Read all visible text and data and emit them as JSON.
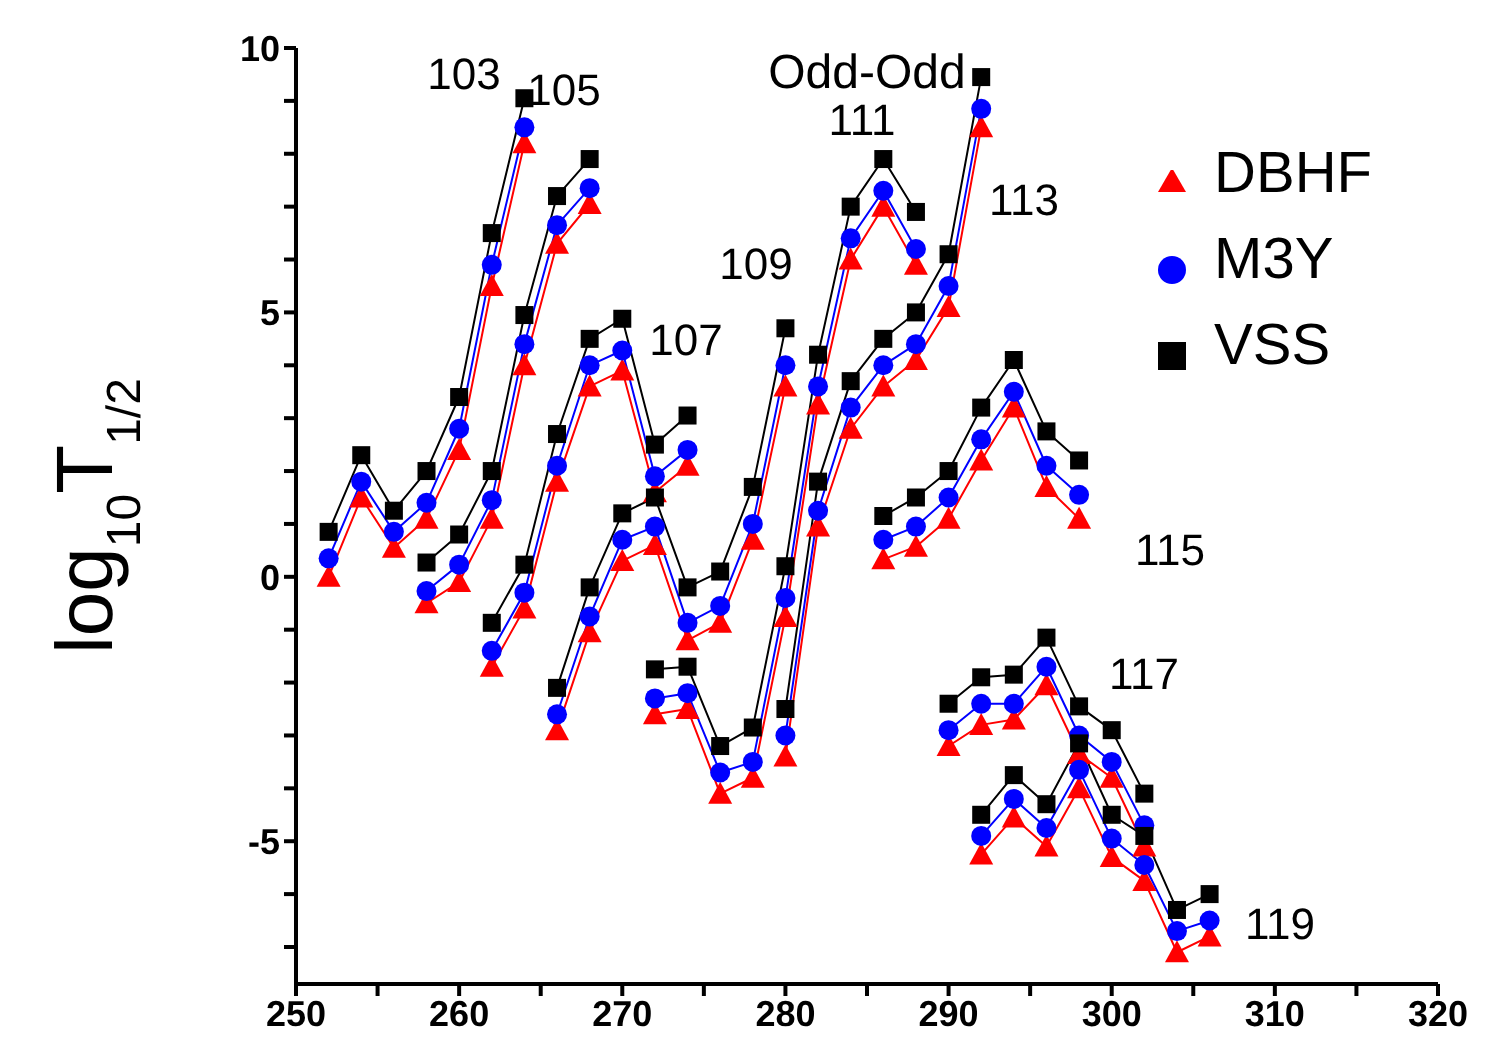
{
  "chart_data": {
    "type": "line",
    "title": "Odd-Odd",
    "ylabel": "log$_{10}$T$_{1/2}$",
    "series": [
      {
        "name": "DBHF",
        "color": "#ff0000",
        "marker": "triangle",
        "x": [
          252,
          254,
          256,
          258,
          260,
          262,
          264
        ],
        "values": [
          0.0,
          1.5,
          0.55,
          1.1,
          2.4,
          5.5,
          8.2
        ]
      },
      {
        "name": "M3Y",
        "color": "#0000ff",
        "marker": "circle",
        "x": [
          252,
          254,
          256,
          258,
          260,
          262,
          264
        ],
        "values": [
          0.35,
          1.8,
          0.85,
          1.4,
          2.8,
          5.9,
          8.5
        ]
      },
      {
        "name": "VSS",
        "color": "#000000",
        "marker": "square",
        "x": [
          252,
          254,
          256,
          258,
          260,
          262,
          264
        ],
        "values": [
          0.85,
          2.3,
          1.25,
          2.0,
          3.4,
          6.5,
          9.05
        ]
      },
      {
        "color": "#ff0000",
        "marker": "triangle",
        "x": [
          258,
          260,
          262,
          264,
          266,
          268
        ],
        "values": [
          -0.5,
          -0.1,
          1.1,
          4.0,
          6.3,
          7.05
        ]
      },
      {
        "color": "#0000ff",
        "marker": "circle",
        "x": [
          258,
          260,
          262,
          264,
          266,
          268
        ],
        "values": [
          -0.27,
          0.23,
          1.45,
          4.4,
          6.65,
          7.35
        ]
      },
      {
        "color": "#000000",
        "marker": "square",
        "x": [
          258,
          260,
          262,
          264,
          266,
          268
        ],
        "values": [
          0.27,
          0.8,
          2.0,
          4.95,
          7.2,
          7.9
        ]
      },
      {
        "color": "#ff0000",
        "marker": "triangle",
        "x": [
          262,
          264,
          266,
          268,
          270,
          272,
          274
        ],
        "values": [
          -1.7,
          -0.6,
          1.8,
          3.6,
          3.9,
          1.6,
          2.1
        ]
      },
      {
        "color": "#0000ff",
        "marker": "circle",
        "x": [
          262,
          264,
          266,
          268,
          270,
          272,
          274
        ],
        "values": [
          -1.4,
          -0.3,
          2.1,
          4.0,
          4.28,
          1.9,
          2.4
        ]
      },
      {
        "color": "#000000",
        "marker": "square",
        "x": [
          262,
          264,
          266,
          268,
          270,
          272,
          274
        ],
        "values": [
          -0.87,
          0.23,
          2.7,
          4.5,
          4.88,
          2.5,
          3.05
        ]
      },
      {
        "color": "#ff0000",
        "marker": "triangle",
        "x": [
          266,
          268,
          270,
          272,
          274,
          276,
          278,
          280
        ],
        "values": [
          -2.9,
          -1.05,
          0.3,
          0.6,
          -1.2,
          -0.87,
          0.7,
          3.6
        ]
      },
      {
        "color": "#0000ff",
        "marker": "circle",
        "x": [
          266,
          268,
          270,
          272,
          274,
          276,
          278,
          280
        ],
        "values": [
          -2.6,
          -0.75,
          0.7,
          0.95,
          -0.87,
          -0.55,
          1.0,
          4.0
        ]
      },
      {
        "color": "#000000",
        "marker": "square",
        "x": [
          266,
          268,
          270,
          272,
          274,
          276,
          278,
          280
        ],
        "values": [
          -2.1,
          -0.2,
          1.2,
          1.5,
          -0.2,
          0.1,
          1.7,
          4.7
        ]
      },
      {
        "color": "#ff0000",
        "marker": "triangle",
        "x": [
          272,
          274,
          276,
          278,
          280,
          282,
          284,
          286,
          288
        ],
        "values": [
          -2.6,
          -2.5,
          -4.1,
          -3.8,
          -0.76,
          3.26,
          6.0,
          7.0,
          5.9
        ]
      },
      {
        "color": "#0000ff",
        "marker": "circle",
        "x": [
          272,
          274,
          276,
          278,
          280,
          282,
          284,
          286,
          288
        ],
        "values": [
          -2.3,
          -2.2,
          -3.7,
          -3.5,
          -0.4,
          3.6,
          6.4,
          7.3,
          6.2
        ]
      },
      {
        "color": "#000000",
        "marker": "square",
        "x": [
          272,
          274,
          276,
          278,
          280,
          282,
          284,
          286,
          288
        ],
        "values": [
          -1.75,
          -1.7,
          -3.2,
          -2.85,
          0.2,
          4.2,
          7.0,
          7.9,
          6.9
        ]
      },
      {
        "color": "#ff0000",
        "marker": "triangle",
        "x": [
          280,
          282,
          284,
          286,
          288,
          290,
          292
        ],
        "values": [
          -3.4,
          0.95,
          2.8,
          3.6,
          4.1,
          5.1,
          8.5
        ]
      },
      {
        "color": "#0000ff",
        "marker": "circle",
        "x": [
          280,
          282,
          284,
          286,
          288,
          290,
          292
        ],
        "values": [
          -3.0,
          1.25,
          3.2,
          4.0,
          4.4,
          5.5,
          8.85
        ]
      },
      {
        "color": "#000000",
        "marker": "square",
        "x": [
          280,
          282,
          284,
          286,
          288,
          290,
          292
        ],
        "values": [
          -2.5,
          1.8,
          3.7,
          4.5,
          5.0,
          6.1,
          9.45
        ]
      },
      {
        "color": "#ff0000",
        "marker": "triangle",
        "x": [
          286,
          288,
          290,
          292,
          294,
          296,
          298
        ],
        "values": [
          0.33,
          0.57,
          1.1,
          2.2,
          3.2,
          1.7,
          1.1
        ]
      },
      {
        "color": "#0000ff",
        "marker": "circle",
        "x": [
          286,
          288,
          290,
          292,
          294,
          296,
          298
        ],
        "values": [
          0.7,
          0.95,
          1.5,
          2.6,
          3.5,
          2.1,
          1.55
        ]
      },
      {
        "color": "#000000",
        "marker": "square",
        "x": [
          286,
          288,
          290,
          292,
          294,
          296,
          298
        ],
        "values": [
          1.15,
          1.5,
          2.0,
          3.2,
          4.1,
          2.75,
          2.2
        ]
      },
      {
        "color": "#ff0000",
        "marker": "triangle",
        "x": [
          290,
          292,
          294,
          296,
          298,
          300,
          302
        ],
        "values": [
          -3.2,
          -2.8,
          -2.7,
          -2.05,
          -3.35,
          -3.8,
          -5.1
        ]
      },
      {
        "color": "#0000ff",
        "marker": "circle",
        "x": [
          290,
          292,
          294,
          296,
          298,
          300,
          302
        ],
        "values": [
          -2.9,
          -2.4,
          -2.4,
          -1.7,
          -3.0,
          -3.5,
          -4.7
        ]
      },
      {
        "color": "#000000",
        "marker": "square",
        "x": [
          290,
          292,
          294,
          296,
          298,
          300,
          302
        ],
        "values": [
          -2.4,
          -1.9,
          -1.85,
          -1.15,
          -2.45,
          -2.9,
          -4.1
        ]
      },
      {
        "color": "#ff0000",
        "marker": "triangle",
        "x": [
          292,
          294,
          296,
          298,
          300,
          302,
          304,
          306
        ],
        "values": [
          -5.25,
          -4.55,
          -5.1,
          -4.0,
          -5.3,
          -5.75,
          -7.1,
          -6.8
        ]
      },
      {
        "color": "#0000ff",
        "marker": "circle",
        "x": [
          292,
          294,
          296,
          298,
          300,
          302,
          304,
          306
        ],
        "values": [
          -4.9,
          -4.2,
          -4.75,
          -3.65,
          -4.95,
          -5.45,
          -6.7,
          -6.5
        ]
      },
      {
        "color": "#000000",
        "marker": "square",
        "x": [
          292,
          294,
          296,
          298,
          300,
          302,
          304,
          306
        ],
        "values": [
          -4.5,
          -3.75,
          -4.3,
          -3.15,
          -4.5,
          -4.9,
          -6.3,
          -6.0
        ]
      }
    ],
    "xlim": [
      250,
      320
    ],
    "xticks": [
      250,
      {
        "value": 255,
        "label": null
      },
      260,
      {
        "value": 265,
        "label": null
      },
      270,
      {
        "value": 275,
        "label": null
      },
      280,
      {
        "value": 285,
        "label": null
      },
      290,
      {
        "value": 295,
        "label": null
      },
      300,
      {
        "value": 305,
        "label": null
      },
      310,
      {
        "value": 315,
        "label": null
      },
      320
    ],
    "ylim": [
      -7.7,
      10
    ],
    "yticks": [
      {
        "value": -7,
        "label": null
      },
      {
        "value": -6,
        "label": null
      },
      -5,
      {
        "value": -4,
        "label": null
      },
      {
        "value": -3,
        "label": null
      },
      {
        "value": -2,
        "label": null
      },
      {
        "value": -1,
        "label": null
      },
      0,
      {
        "value": 1,
        "label": null
      },
      {
        "value": 2,
        "label": null
      },
      {
        "value": 3,
        "label": null
      },
      {
        "value": 4,
        "label": null
      },
      5,
      {
        "value": 6,
        "label": null
      },
      {
        "value": 7,
        "label": null
      },
      {
        "value": 8,
        "label": null
      },
      {
        "value": 9,
        "label": null
      },
      10
    ],
    "annotations": [
      "103",
      "105",
      "107",
      "109",
      "111",
      "113",
      "115",
      "117",
      "119"
    ],
    "legend": "top right",
    "line_style": "solid"
  }
}
